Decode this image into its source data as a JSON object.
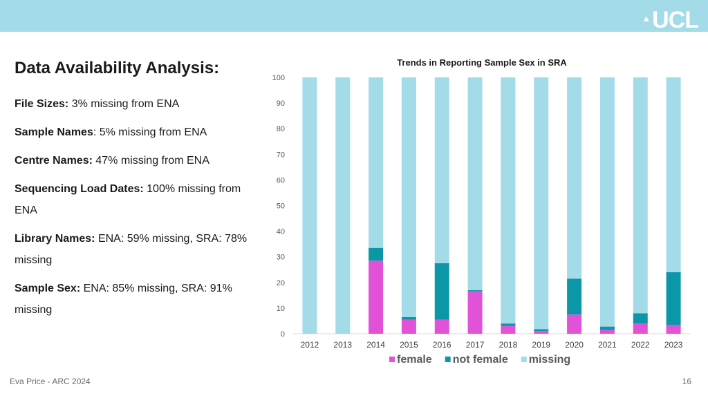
{
  "header": {
    "logo_text": "UCL"
  },
  "left_panel": {
    "title": "Data Availability Analysis:",
    "items": [
      {
        "label": "File Sizes:",
        "text": " 3% missing from ENA"
      },
      {
        "label": "Sample Names",
        "text": ": 5% missing from ENA"
      },
      {
        "label": "Centre Names:",
        "text": " 47% missing from ENA"
      },
      {
        "label": "Sequencing Load Dates:",
        "text": " 100% missing from ENA"
      },
      {
        "label": "Library Names:",
        "text": " ENA: 59% missing, SRA: 78% missing"
      },
      {
        "label": "Sample Sex:",
        "text": " ENA: 85% missing, SRA: 91% missing"
      }
    ]
  },
  "footer": {
    "author": "Eva Price - ARC 2024",
    "page_number": "16"
  },
  "colors": {
    "banner": "#a4dbe8",
    "female": "#e152d9",
    "not_female": "#0c97a8",
    "missing": "#a4dbe8"
  },
  "chart_data": {
    "type": "bar",
    "stacked": true,
    "title": "Trends in Reporting Sample Sex in SRA",
    "xlabel": "",
    "ylabel": "",
    "ylim": [
      0,
      100
    ],
    "yticks": [
      0,
      10,
      20,
      30,
      40,
      50,
      60,
      70,
      80,
      90,
      100
    ],
    "categories": [
      "2012",
      "2013",
      "2014",
      "2015",
      "2016",
      "2017",
      "2018",
      "2019",
      "2020",
      "2021",
      "2022",
      "2023"
    ],
    "series": [
      {
        "name": "female",
        "color": "#e152d9",
        "values": [
          0,
          0,
          28.5,
          5.5,
          5.5,
          16.5,
          3,
          1,
          7.5,
          1.5,
          4,
          3.5
        ]
      },
      {
        "name": "not female",
        "color": "#0c97a8",
        "values": [
          0,
          0,
          5,
          1,
          22,
          0.5,
          1,
          0.8,
          14,
          1.3,
          4,
          20.5
        ]
      },
      {
        "name": "missing",
        "color": "#a4dbe8",
        "values": [
          100,
          100,
          66.5,
          93.5,
          72.5,
          83,
          96,
          98.2,
          78.5,
          97.2,
          92,
          76
        ]
      }
    ],
    "legend_position": "bottom"
  }
}
